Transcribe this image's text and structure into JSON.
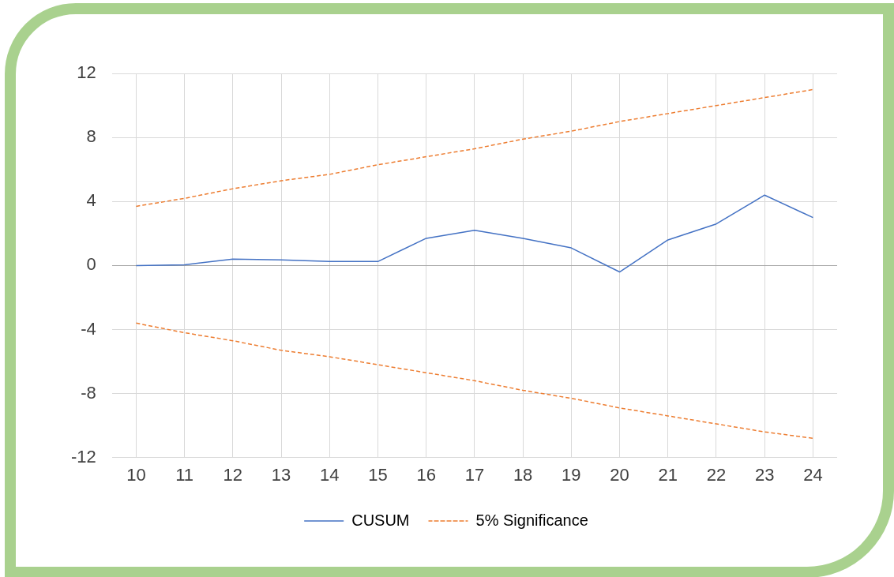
{
  "chart_data": {
    "type": "line",
    "categories": [
      "10",
      "11",
      "12",
      "13",
      "14",
      "15",
      "16",
      "17",
      "18",
      "19",
      "20",
      "21",
      "22",
      "23",
      "24"
    ],
    "series": [
      {
        "name": "CUSUM",
        "color": "#4472c4",
        "line_style": "solid",
        "values": [
          0,
          0.05,
          0.4,
          0.35,
          0.25,
          0.25,
          1.7,
          2.2,
          1.7,
          1.1,
          -0.4,
          1.6,
          2.6,
          4.4,
          3.0
        ]
      },
      {
        "name": "5% Significance",
        "color": "#ed7d31",
        "line_style": "dashed",
        "values": [
          3.7,
          4.2,
          4.8,
          5.3,
          5.7,
          6.3,
          6.8,
          7.3,
          7.9,
          8.4,
          9.0,
          9.5,
          10.0,
          10.5,
          11.0
        ]
      },
      {
        "color": "#ed7d31",
        "line_style": "dashed",
        "values": [
          -3.6,
          -4.2,
          -4.7,
          -5.3,
          -5.7,
          -6.2,
          -6.7,
          -7.2,
          -7.8,
          -8.3,
          -8.9,
          -9.4,
          -9.9,
          -10.4,
          -10.8
        ]
      }
    ],
    "ylim": [
      -12,
      12
    ],
    "yticks": [
      -12,
      -8,
      -4,
      0,
      4,
      8,
      12
    ],
    "grid": true,
    "legend": "bottom",
    "marker": "none"
  }
}
